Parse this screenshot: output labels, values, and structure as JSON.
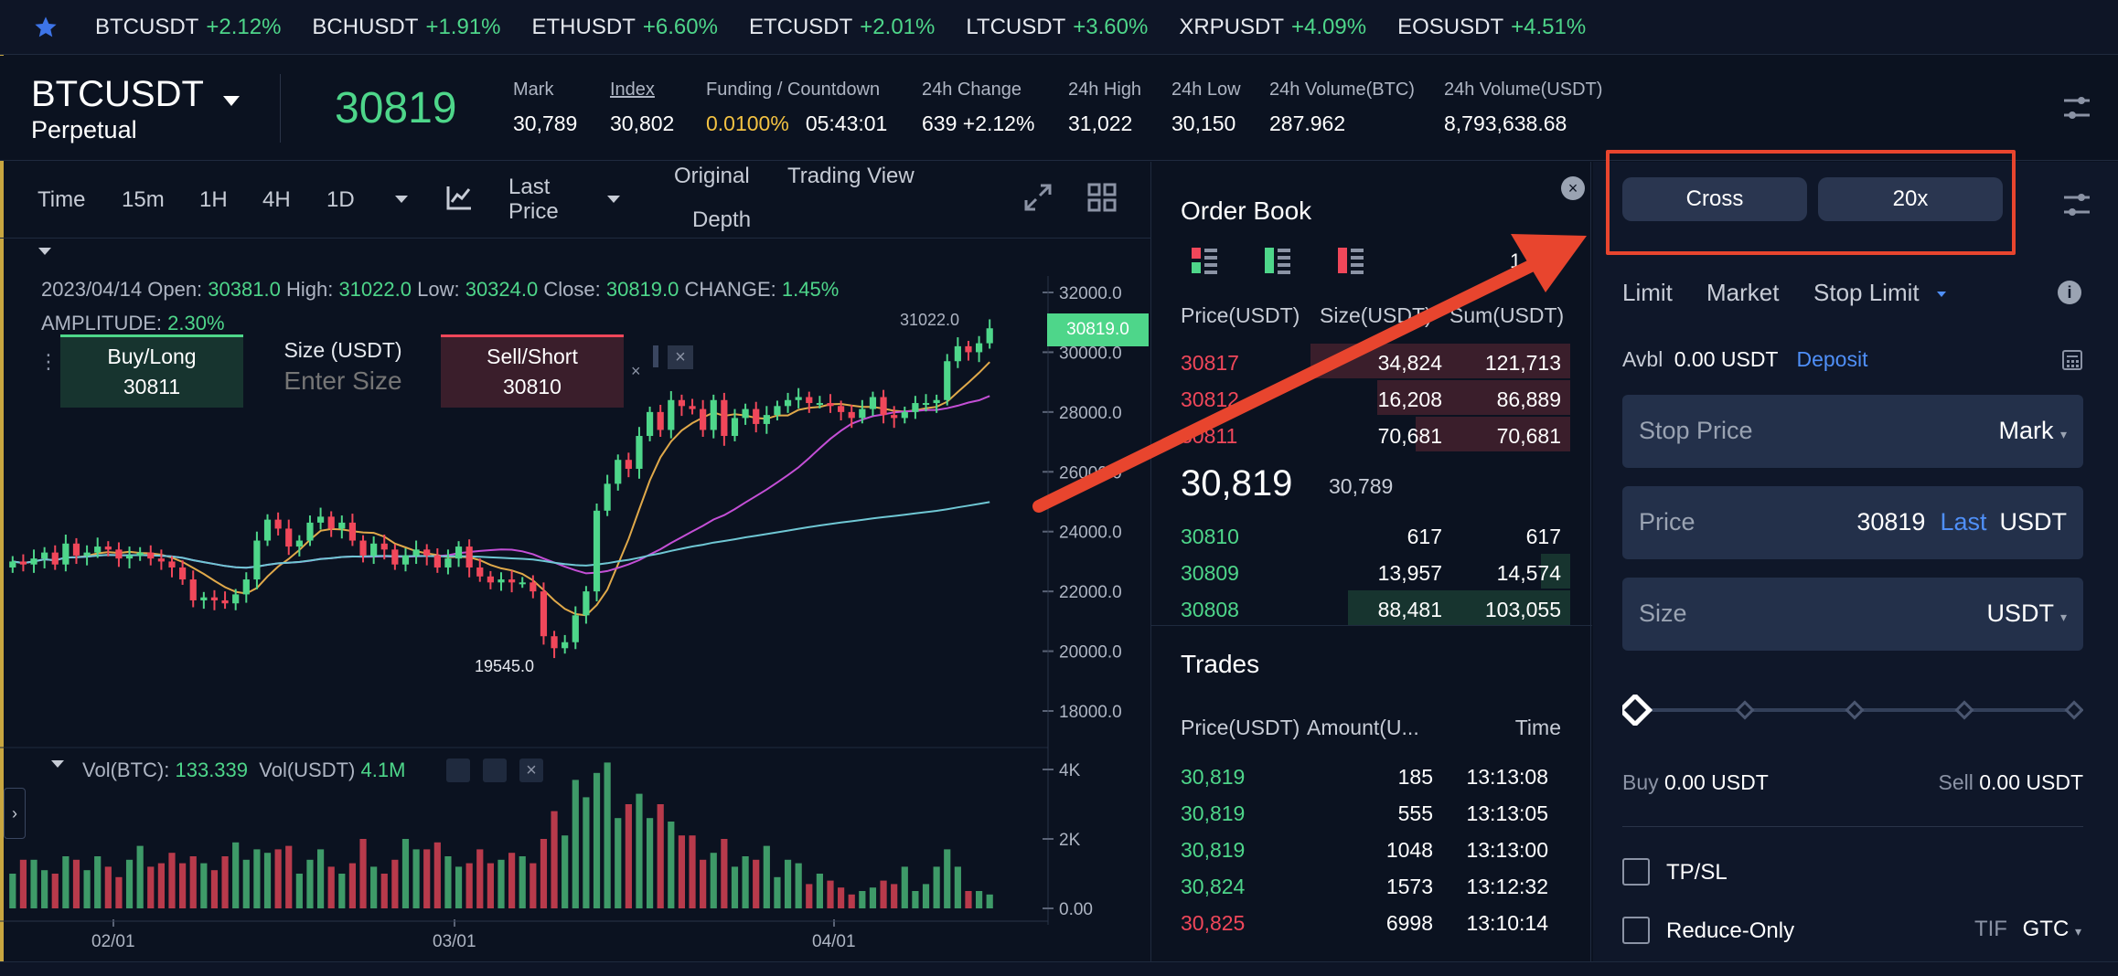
{
  "ticker": [
    {
      "symbol": "BTCUSDT",
      "change": "+2.12%"
    },
    {
      "symbol": "BCHUSDT",
      "change": "+1.91%"
    },
    {
      "symbol": "ETHUSDT",
      "change": "+6.60%"
    },
    {
      "symbol": "ETCUSDT",
      "change": "+2.01%"
    },
    {
      "symbol": "LTCUSDT",
      "change": "+3.60%"
    },
    {
      "symbol": "XRPUSDT",
      "change": "+4.09%"
    },
    {
      "symbol": "EOSUSDT",
      "change": "+4.51%"
    }
  ],
  "header": {
    "symbol": "BTCUSDT",
    "contract": "Perpetual",
    "last_price": "30819",
    "stats": [
      {
        "label": "Mark",
        "value": "30,789"
      },
      {
        "label": "Index",
        "value": "30,802"
      },
      {
        "label": "Funding / Countdown",
        "value": "0.0100%",
        "value2": "05:43:01"
      },
      {
        "label": "24h Change",
        "value": "639 +2.12%"
      },
      {
        "label": "24h High",
        "value": "31,022"
      },
      {
        "label": "24h Low",
        "value": "30,150"
      },
      {
        "label": "24h Volume(BTC)",
        "value": "287.962"
      },
      {
        "label": "24h Volume(USDT)",
        "value": "8,793,638.68"
      }
    ]
  },
  "chart_toolbar": {
    "time": "Time",
    "i15m": "15m",
    "i1h": "1H",
    "i4h": "4H",
    "i1d": "1D",
    "price_type": "Last Price",
    "original": "Original",
    "trading_view": "Trading View",
    "depth": "Depth"
  },
  "chart_info": {
    "date": "2023/04/14",
    "open_l": "Open:",
    "open": "30381.0",
    "high_l": "High:",
    "high": "31022.0",
    "low_l": "Low:",
    "low": "30324.0",
    "close_l": "Close:",
    "close": "30819.0",
    "change_l": "CHANGE:",
    "change": "1.45%",
    "amp_l": "AMPLITUDE:",
    "amp": "2.30%",
    "vol_btc_l": "Vol(BTC):",
    "vol_btc": "133.339",
    "vol_usdt_l": "Vol(USDT)",
    "vol_usdt": "4.1M",
    "max_label": "31022.0",
    "min_label": "19545.0",
    "current_tag": "30819.0"
  },
  "quick_trade": {
    "buy_label": "Buy/Long",
    "buy_price": "30811",
    "size_label": "Size (USDT)",
    "size_placeholder": "Enter Size",
    "sell_label": "Sell/Short",
    "sell_price": "30810"
  },
  "chart_data": {
    "type": "candlestick",
    "y_ticks": [
      "32000.0",
      "30000.0",
      "28000.0",
      "26000.0",
      "24000.0",
      "22000.0",
      "20000.0",
      "18000.0"
    ],
    "vol_ticks": [
      "4K",
      "2K",
      "0.00"
    ],
    "x_ticks": [
      "02/01",
      "03/01",
      "04/01"
    ],
    "ylim": [
      18000,
      32000
    ],
    "close": [
      23000,
      22900,
      23100,
      23300,
      22900,
      23600,
      23200,
      23300,
      23500,
      23400,
      23100,
      23200,
      23300,
      23100,
      23000,
      22800,
      22400,
      21700,
      21800,
      21700,
      21600,
      21900,
      22400,
      23700,
      24400,
      24100,
      23500,
      23700,
      24300,
      24500,
      24100,
      24300,
      23700,
      23200,
      23600,
      23400,
      22900,
      23200,
      23400,
      23200,
      22800,
      23100,
      23500,
      22800,
      22500,
      22300,
      22400,
      22300,
      22300,
      22000,
      20500,
      20100,
      20300,
      21200,
      22000,
      24700,
      25600,
      26400,
      26100,
      27200,
      28000,
      27400,
      28400,
      28200,
      28100,
      27400,
      28400,
      27200,
      27800,
      28100,
      27600,
      27900,
      28200,
      28400,
      28500,
      28300,
      28300,
      28200,
      28000,
      27800,
      28100,
      28500,
      27900,
      27800,
      28000,
      28300,
      28300,
      28400,
      29700,
      30200,
      30000,
      30300,
      30800
    ],
    "volume": [
      1000,
      1400,
      1400,
      1100,
      1000,
      1500,
      1400,
      1100,
      1500,
      1200,
      900,
      1400,
      1800,
      1200,
      1300,
      1600,
      1300,
      1500,
      1300,
      1100,
      1500,
      1900,
      1400,
      1700,
      1600,
      1700,
      1800,
      1000,
      1400,
      1700,
      1200,
      1000,
      1300,
      2000,
      1200,
      1000,
      1400,
      2000,
      1700,
      1700,
      1900,
      1500,
      1200,
      1300,
      1700,
      1300,
      1400,
      1600,
      1500,
      1300,
      2000,
      2800,
      2100,
      3700,
      3200,
      3900,
      4200,
      2600,
      3000,
      3300,
      2600,
      3000,
      2500,
      2100,
      2100,
      1400,
      1600,
      2000,
      1200,
      1500,
      1400,
      1800,
      900,
      1400,
      1300,
      700,
      1000,
      800,
      600,
      400,
      500,
      600,
      800,
      700,
      1200,
      500,
      700,
      1200,
      1700,
      1200,
      500,
      500,
      400
    ]
  },
  "orderbook": {
    "title": "Order Book",
    "precision": "1",
    "headers": [
      "Price(USDT)",
      "Size(USDT)",
      "Sum(USDT)"
    ],
    "asks": [
      {
        "price": "30817",
        "size": "34,824",
        "sum": "121,713",
        "depth": 0.62
      },
      {
        "price": "30812",
        "size": "16,208",
        "sum": "86,889",
        "depth": 0.46
      },
      {
        "price": "30811",
        "size": "70,681",
        "sum": "70,681",
        "depth": 0.37
      }
    ],
    "mid": "30,819",
    "mid_mark": "30,789",
    "bids": [
      {
        "price": "30810",
        "size": "617",
        "sum": "617",
        "depth": 0.0
      },
      {
        "price": "30809",
        "size": "13,957",
        "sum": "14,574",
        "depth": 0.07
      },
      {
        "price": "30808",
        "size": "88,481",
        "sum": "103,055",
        "depth": 0.53
      }
    ]
  },
  "trades": {
    "title": "Trades",
    "headers": [
      "Price(USDT)",
      "Amount(U...",
      "Time"
    ],
    "rows": [
      {
        "price": "30,819",
        "amount": "185",
        "time": "13:13:08",
        "side": "buy"
      },
      {
        "price": "30,819",
        "amount": "555",
        "time": "13:13:05",
        "side": "buy"
      },
      {
        "price": "30,819",
        "amount": "1048",
        "time": "13:13:00",
        "side": "buy"
      },
      {
        "price": "30,824",
        "amount": "1573",
        "time": "13:12:32",
        "side": "buy"
      },
      {
        "price": "30,825",
        "amount": "6998",
        "time": "13:10:14",
        "side": "sell"
      }
    ]
  },
  "form": {
    "margin_mode": "Cross",
    "leverage": "20x",
    "tabs": [
      "Limit",
      "Market",
      "Stop Limit"
    ],
    "avbl_label": "Avbl",
    "avbl_value": "0.00 USDT",
    "deposit": "Deposit",
    "stop_price_label": "Stop Price",
    "stop_price_type": "Mark",
    "price_label": "Price",
    "price_value": "30819",
    "price_last": "Last",
    "price_unit": "USDT",
    "size_label": "Size",
    "size_unit": "USDT",
    "slider_value": 0,
    "buy_label": "Buy",
    "buy_value": "0.00 USDT",
    "sell_label": "Sell",
    "sell_value": "0.00 USDT",
    "tpsl": "TP/SL",
    "reduce_only": "Reduce-Only",
    "tif_label": "TIF",
    "tif_value": "GTC"
  },
  "colors": {
    "up": "#4ed68a",
    "down": "#f0475a",
    "accent": "#4f8ff7",
    "highlight": "#e8452e"
  }
}
